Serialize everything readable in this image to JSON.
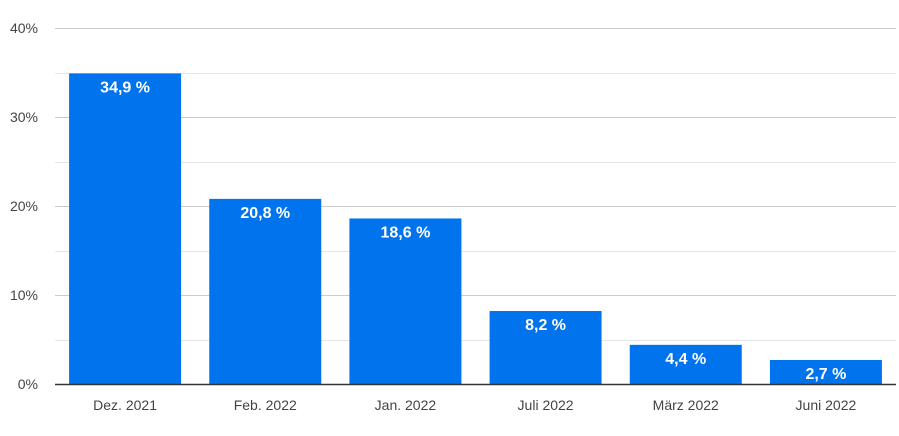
{
  "chart_data": {
    "type": "bar",
    "categories": [
      "Dez. 2021",
      "Feb. 2022",
      "Jan. 2022",
      "Juli 2022",
      "März 2022",
      "Juni 2022"
    ],
    "values": [
      34.9,
      20.8,
      18.6,
      8.2,
      4.4,
      2.7
    ],
    "value_labels": [
      "34,9 %",
      "20,8 %",
      "18,6 %",
      "8,2 %",
      "4,4 %",
      "2,7 %"
    ],
    "y_ticks": [
      0,
      10,
      20,
      30,
      40
    ],
    "y_tick_labels": [
      "0%",
      "10%",
      "20%",
      "30%",
      "40%"
    ],
    "ylim": [
      0,
      40
    ],
    "grid": true,
    "title": "",
    "xlabel": "",
    "ylabel": "",
    "colors": {
      "bar": "#0073ED",
      "major_grid": "#CCCCCC",
      "minor_grid": "#E6E6E6",
      "axis": "#333333",
      "tick_text": "#444444",
      "label_text": "#FFFFFF"
    }
  }
}
